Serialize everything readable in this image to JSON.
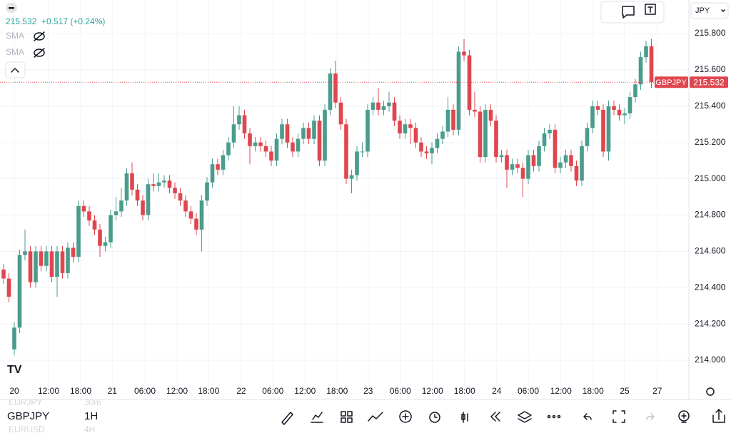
{
  "chart_data": {
    "type": "candlestick",
    "symbol": "GBPJPY",
    "up_color": "#4a9c8c",
    "down_color": "#e0464f",
    "header": {
      "price": "215.532",
      "change": "+0.517 (+0.24%)"
    },
    "indicators": [
      "SMA",
      "SMA"
    ],
    "currency": "JPY",
    "last_price": 215.532,
    "open": [
      214.5,
      214.45,
      214.06,
      214.18,
      214.58,
      214.6,
      214.43,
      214.6,
      214.52,
      214.6,
      214.46,
      214.6,
      214.48,
      214.62,
      214.57,
      214.85,
      214.82,
      214.77,
      214.72,
      214.63,
      214.65,
      214.8,
      214.82,
      214.88,
      215.03,
      214.94,
      214.88,
      214.8,
      214.97,
      214.96,
      214.98,
      214.99,
      214.95,
      214.92,
      214.88,
      214.82,
      214.78,
      214.72,
      214.88,
      214.98,
      215.08,
      215.05,
      215.13,
      215.2,
      215.3,
      215.35,
      215.25,
      215.18,
      215.2,
      215.18,
      215.15,
      215.1,
      215.22,
      215.3,
      215.2,
      215.15,
      215.22,
      215.28,
      215.22,
      215.32,
      215.1,
      215.38,
      215.58,
      215.42,
      215.3,
      215.0,
      215.02,
      215.15,
      215.15,
      215.38,
      215.42,
      215.38,
      215.4,
      215.42,
      215.32,
      215.25,
      215.3,
      215.28,
      215.2,
      215.15,
      215.14,
      215.17,
      215.22,
      215.26,
      215.38,
      215.27,
      215.7,
      215.68,
      215.38,
      215.37,
      215.12,
      215.38,
      215.32,
      215.12,
      215.13,
      215.05,
      215.08,
      215.06,
      215.0,
      215.13,
      215.07,
      215.18,
      215.25,
      215.27,
      215.06,
      215.09,
      215.13,
      215.07,
      214.99,
      215.18,
      215.28,
      215.4,
      215.38,
      215.15,
      215.4,
      215.38,
      215.35,
      215.36,
      215.45,
      215.52,
      215.67,
      215.73
    ],
    "high": [
      214.53,
      214.48,
      214.21,
      214.61,
      214.72,
      214.63,
      214.63,
      214.63,
      214.63,
      214.63,
      214.63,
      214.63,
      214.65,
      214.65,
      214.88,
      214.88,
      214.85,
      214.8,
      214.75,
      214.68,
      214.83,
      214.9,
      214.95,
      215.06,
      215.09,
      214.97,
      214.91,
      215.0,
      215.03,
      215.03,
      215.02,
      215.02,
      214.98,
      214.95,
      214.91,
      214.85,
      214.81,
      214.91,
      215.01,
      215.11,
      215.11,
      215.16,
      215.23,
      215.4,
      215.4,
      215.38,
      215.28,
      215.23,
      215.23,
      215.21,
      215.18,
      215.25,
      215.33,
      215.33,
      215.23,
      215.25,
      215.31,
      215.31,
      215.35,
      215.35,
      215.41,
      215.61,
      215.65,
      215.45,
      215.33,
      215.05,
      215.18,
      215.2,
      215.41,
      215.45,
      215.5,
      215.43,
      215.48,
      215.45,
      215.35,
      215.33,
      215.33,
      215.31,
      215.23,
      215.18,
      215.2,
      215.25,
      215.29,
      215.45,
      215.41,
      215.73,
      215.77,
      215.71,
      215.48,
      215.4,
      215.41,
      215.41,
      215.35,
      215.16,
      215.16,
      215.11,
      215.11,
      215.09,
      215.16,
      215.16,
      215.21,
      215.28,
      215.3,
      215.3,
      215.12,
      215.16,
      215.16,
      215.1,
      215.21,
      215.31,
      215.43,
      215.43,
      215.41,
      215.43,
      215.43,
      215.41,
      215.39,
      215.48,
      215.55,
      215.7,
      215.76,
      215.77
    ],
    "low": [
      214.42,
      214.32,
      214.03,
      214.15,
      214.55,
      214.4,
      214.4,
      214.49,
      214.49,
      214.43,
      214.35,
      214.45,
      214.45,
      214.54,
      214.54,
      214.79,
      214.74,
      214.69,
      214.57,
      214.6,
      214.62,
      214.77,
      214.79,
      214.85,
      214.91,
      214.85,
      214.77,
      214.77,
      214.93,
      214.93,
      214.95,
      214.92,
      214.89,
      214.85,
      214.79,
      214.75,
      214.69,
      214.6,
      214.85,
      214.95,
      215.02,
      215.02,
      215.1,
      215.17,
      215.27,
      215.22,
      215.08,
      215.15,
      215.15,
      215.12,
      215.07,
      215.07,
      215.19,
      215.17,
      215.12,
      215.12,
      215.19,
      215.19,
      215.19,
      215.07,
      215.07,
      215.35,
      215.39,
      215.27,
      214.97,
      214.92,
      214.99,
      215.12,
      215.12,
      215.35,
      215.35,
      215.35,
      215.37,
      215.29,
      215.22,
      215.22,
      215.19,
      215.17,
      215.12,
      215.11,
      215.08,
      215.14,
      215.19,
      215.23,
      215.24,
      215.24,
      215.65,
      215.35,
      215.34,
      215.09,
      215.09,
      215.29,
      215.09,
      215.09,
      214.95,
      215.02,
      215.03,
      214.9,
      214.97,
      215.04,
      215.04,
      215.15,
      215.22,
      215.03,
      215.03,
      215.06,
      215.04,
      214.96,
      214.96,
      215.15,
      215.25,
      215.35,
      215.12,
      215.1,
      215.35,
      215.32,
      215.3,
      215.33,
      215.42,
      215.49,
      215.64,
      215.5
    ],
    "close": [
      214.45,
      214.35,
      214.18,
      214.58,
      214.6,
      214.43,
      214.6,
      214.52,
      214.6,
      214.46,
      214.6,
      214.48,
      214.62,
      214.57,
      214.85,
      214.82,
      214.77,
      214.72,
      214.63,
      214.65,
      214.8,
      214.82,
      214.88,
      215.03,
      214.94,
      214.88,
      214.8,
      214.97,
      214.96,
      214.98,
      214.99,
      214.95,
      214.92,
      214.88,
      214.82,
      214.78,
      214.72,
      214.88,
      214.98,
      215.08,
      215.05,
      215.13,
      215.2,
      215.3,
      215.35,
      215.25,
      215.18,
      215.2,
      215.18,
      215.15,
      215.1,
      215.22,
      215.3,
      215.2,
      215.15,
      215.22,
      215.28,
      215.22,
      215.32,
      215.1,
      215.38,
      215.58,
      215.42,
      215.3,
      215.0,
      215.02,
      215.15,
      215.15,
      215.38,
      215.42,
      215.38,
      215.4,
      215.42,
      215.32,
      215.25,
      215.3,
      215.28,
      215.2,
      215.15,
      215.14,
      215.17,
      215.22,
      215.26,
      215.38,
      215.27,
      215.7,
      215.68,
      215.38,
      215.37,
      215.12,
      215.38,
      215.32,
      215.12,
      215.13,
      215.05,
      215.08,
      215.06,
      215.0,
      215.13,
      215.07,
      215.18,
      215.25,
      215.27,
      215.06,
      215.09,
      215.13,
      215.07,
      214.99,
      215.18,
      215.28,
      215.4,
      215.38,
      215.15,
      215.4,
      215.38,
      215.35,
      215.36,
      215.45,
      215.52,
      215.67,
      215.73,
      215.532
    ],
    "xlim": [
      -0.667,
      128
    ],
    "xticks": [
      {
        "value": 2,
        "label": "20"
      },
      {
        "value": 8.4,
        "label": "12:00"
      },
      {
        "value": 14.4,
        "label": "18:00"
      },
      {
        "value": 20.3,
        "label": "21"
      },
      {
        "value": 26.4,
        "label": "06:00"
      },
      {
        "value": 32.4,
        "label": "12:00"
      },
      {
        "value": 38.3,
        "label": "18:00"
      },
      {
        "value": 44.4,
        "label": "22"
      },
      {
        "value": 50.3,
        "label": "06:00"
      },
      {
        "value": 56.3,
        "label": "12:00"
      },
      {
        "value": 62.3,
        "label": "18:00"
      },
      {
        "value": 68.1,
        "label": "23"
      },
      {
        "value": 74.1,
        "label": "06:00"
      },
      {
        "value": 80.1,
        "label": "12:00"
      },
      {
        "value": 86.1,
        "label": "18:00"
      },
      {
        "value": 92.1,
        "label": "24"
      },
      {
        "value": 98,
        "label": "06:00"
      },
      {
        "value": 104.1,
        "label": "12:00"
      },
      {
        "value": 110.1,
        "label": "18:00"
      },
      {
        "value": 116,
        "label": "25"
      },
      {
        "value": 122.1,
        "label": "27"
      }
    ],
    "ylim": [
      213.882,
      215.985
    ],
    "yticks": [
      {
        "value": 214,
        "label": "214.000"
      },
      {
        "value": 214.2,
        "label": "214.200"
      },
      {
        "value": 214.4,
        "label": "214.400"
      },
      {
        "value": 214.6,
        "label": "214.600"
      },
      {
        "value": 214.8,
        "label": "214.800"
      },
      {
        "value": 215,
        "label": "215.000"
      },
      {
        "value": 215.2,
        "label": "215.200"
      },
      {
        "value": 215.4,
        "label": "215.400"
      },
      {
        "value": 215.6,
        "label": "215.600"
      },
      {
        "value": 215.8,
        "label": "215.800"
      }
    ],
    "grid": true
  },
  "toolbar": {
    "symbol": "GBPJPY",
    "interval": "1H",
    "recent": [
      {
        "symbol": "EURJPY",
        "interval": "30m"
      },
      {
        "symbol": "EURUSD",
        "interval": "4H"
      }
    ]
  }
}
